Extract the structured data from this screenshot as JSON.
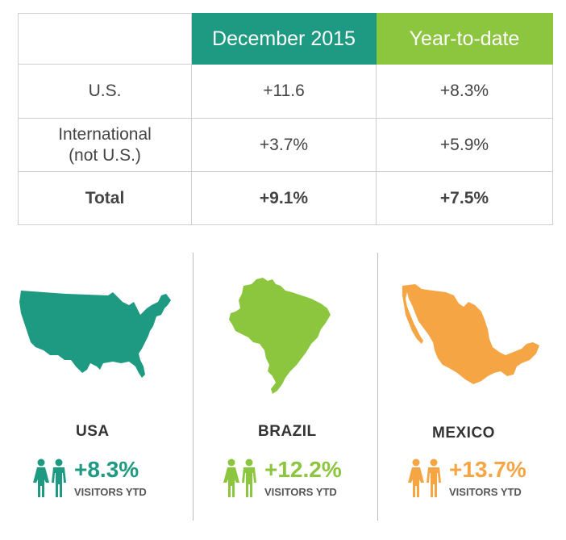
{
  "table": {
    "header": {
      "corner": "",
      "col1": "December 2015",
      "col2": "Year-to-date"
    },
    "rows": [
      {
        "label": "U.S.",
        "label2": "",
        "dec": "+11.6",
        "ytd": "+8.3%"
      },
      {
        "label": "International",
        "label2": "(not U.S.)",
        "dec": "+3.7%",
        "ytd": "+5.9%"
      },
      {
        "label": "Total",
        "label2": "",
        "dec": "+9.1%",
        "ytd": "+7.5%"
      }
    ]
  },
  "countries": [
    {
      "name": "USA",
      "value": "+8.3%",
      "caption": "VISITORS YTD",
      "color": "#1e9a82",
      "icon": "usa-map-icon"
    },
    {
      "name": "BRAZIL",
      "value": "+12.2%",
      "caption": "VISITORS YTD",
      "color": "#8cc63f",
      "icon": "brazil-map-icon"
    },
    {
      "name": "MEXICO",
      "value": "+13.7%",
      "caption": "VISITORS YTD",
      "color": "#f6a545",
      "icon": "mexico-map-icon"
    }
  ],
  "colors": {
    "teal": "#1e9a82",
    "green": "#8cc63f",
    "orange": "#f6a545",
    "border": "#cfcfcf"
  }
}
